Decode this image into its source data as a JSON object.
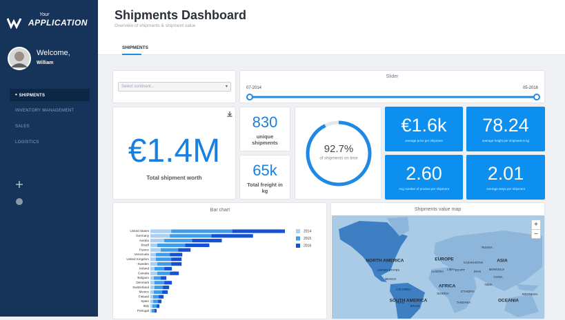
{
  "sidebar": {
    "brand_small": "Your",
    "brand": "APPLICATION",
    "welcome": "Welcome,",
    "user": "William",
    "nav": [
      "SHIPMENTS",
      "INVENTORY MANAGEMENT",
      "SALES",
      "LOGISTICS"
    ]
  },
  "header": {
    "title": "Shipments Dashboard",
    "subtitle": "Overview of shipments & shipment value",
    "tabs": [
      "SHIPMENTS"
    ]
  },
  "filters": {
    "select_placeholder": "Select continent...",
    "slider_title": "Slider",
    "slider_min": "07-2014",
    "slider_max": "05-2016"
  },
  "kpis": {
    "total_worth": {
      "value": "€1.4M",
      "label": "Total shipment worth"
    },
    "unique_shipments": {
      "value": "830",
      "label": "unique shipments"
    },
    "total_freight": {
      "value": "65k",
      "label": "Total freight in kg"
    },
    "avg_price": {
      "value": "€1.6k",
      "label": "average price per shipment"
    },
    "avg_freight": {
      "value": "78.24",
      "label": "average freight per shipment in kg"
    },
    "avg_products": {
      "value": "2.60",
      "label": "Avg number of product per shipment"
    },
    "avg_steps": {
      "value": "2.01",
      "label": "Average steps per shipment"
    }
  },
  "gauge": {
    "value": 92.7,
    "label": "92.7%",
    "caption": "of shipments on time"
  },
  "chart_data": {
    "type": "bar",
    "orientation": "horizontal",
    "stacked": true,
    "title": "Bar chart",
    "legend": "right",
    "categories": [
      "United States",
      "Germany",
      "Austria",
      "Brazil",
      "France",
      "Venezuela",
      "United Kingdom",
      "Sweden",
      "Ireland",
      "Canada",
      "Belgium",
      "Denmark",
      "Switzerland",
      "Mexico",
      "Finland",
      "Spain",
      "Italy",
      "Portugal"
    ],
    "series": [
      {
        "name": "2014",
        "color": "#a9cff4",
        "values": [
          30,
          28,
          20,
          10,
          15,
          8,
          8,
          10,
          6,
          10,
          5,
          6,
          6,
          5,
          4,
          4,
          3,
          2
        ]
      },
      {
        "name": "2015",
        "color": "#3f9ce8",
        "values": [
          88,
          60,
          40,
          40,
          25,
          20,
          22,
          20,
          14,
          18,
          10,
          14,
          12,
          12,
          8,
          7,
          6,
          4
        ]
      },
      {
        "name": "2016",
        "color": "#1452d2",
        "values": [
          76,
          60,
          43,
          35,
          18,
          18,
          15,
          15,
          11,
          13,
          8,
          11,
          9,
          8,
          7,
          5,
          4,
          3
        ]
      }
    ]
  },
  "map": {
    "title": "Shipments value map",
    "zoom_in": "+",
    "zoom_out": "−",
    "labels": [
      "RUSSIA",
      "NORTH AMERICA",
      "EUROPE",
      "ASIA",
      "MONGOLIA",
      "CHINA",
      "KAZAKHSTAN",
      "UNITED STATES",
      "MEXICO",
      "ALGERIA",
      "LIBYA",
      "EGYPT",
      "IRAN",
      "INDIA",
      "AFRICA",
      "NIGERIA",
      "ETHIOPIA",
      "COLOMBIA",
      "PERU",
      "SOUTH AMERICA",
      "BRAZIL",
      "TANZANIA",
      "INDONESIA",
      "OCEANIA"
    ]
  }
}
